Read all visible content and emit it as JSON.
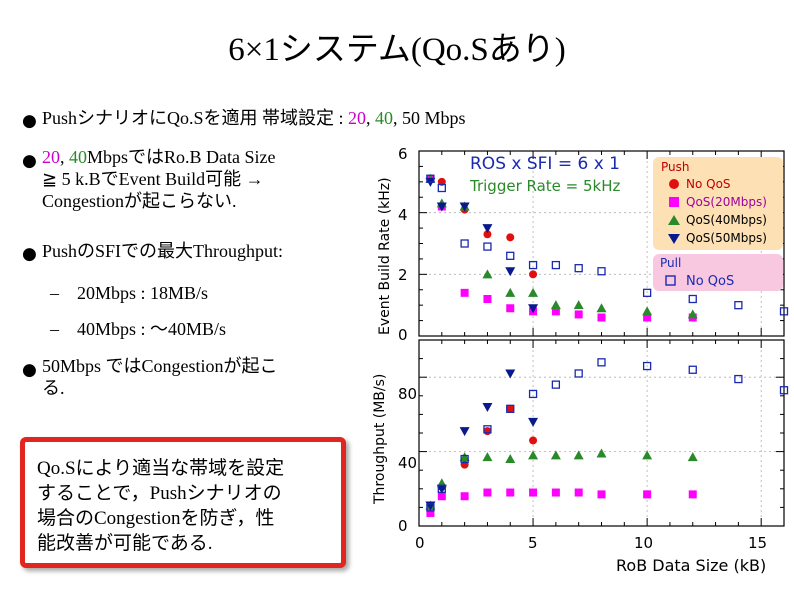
{
  "title": "6×1システム(Qo.Sあり)",
  "bullets": [
    {
      "pre": "Pushシナリオに",
      "mid": "Qo.Sを適用 帯域設定 : ",
      "v1": "20",
      "c1": ", ",
      "v2": "40",
      "c2": ", 50 Mbps"
    },
    {
      "v1": "20",
      "c1": ", ",
      "v2": "40",
      "line1": "Mbpsでは",
      "line1b": "Ro.B Data Size",
      "line2": "≧ 5 k.Bで",
      "line2b": "Event Build可能 →",
      "line3": "Congestionが起こらない."
    },
    {
      "line1": "Pushの",
      "line1b": "SFIでの最大",
      "line1c": "Throughput:"
    },
    {
      "line1": "50Mbps では",
      "line1b": "Congestionが起こ",
      "line2": "る."
    }
  ],
  "sub_items": [
    "20Mbps : 18MB/s",
    "40Mbps : ～40MB/s"
  ],
  "dash": "–",
  "callout": {
    "lines": [
      "Qo.Sにより適当な帯域を設定",
      "することで，Pushシナリオの",
      "場合のCongestionを防ぎ，性",
      "能改善が可能である."
    ]
  },
  "colors": {
    "magenta": "#ff00ff",
    "green": "#2a8a2a",
    "navy": "#0a1a8c",
    "red": "#e01010",
    "blue": "#1a2ab0",
    "callout_border": "#e0261e"
  },
  "chart_data": [
    {
      "type": "scatter",
      "title": "ROS x SFI = 6 x 1",
      "subtitle": "Trigger Rate = 5kHz",
      "ylabel": "Event Build Rate (kHz)",
      "xlim": [
        0,
        16
      ],
      "ylim": [
        0,
        6
      ],
      "yticks": [
        "0",
        "2",
        "4",
        "6"
      ],
      "grid": true,
      "legend": {
        "placement": "top-right",
        "push_title": "Push",
        "pull_title": "Pull",
        "items": [
          "No QoS",
          "QoS(20Mbps)",
          "QoS(40Mbps)",
          "QoS(50Mbps)",
          "No QoS"
        ]
      },
      "series": [
        {
          "name": "No QoS (Push)",
          "marker": "circle",
          "x": [
            0.5,
            1,
            2,
            3,
            4,
            5
          ],
          "y": [
            5.1,
            5.0,
            4.1,
            3.3,
            3.2,
            2.0
          ]
        },
        {
          "name": "QoS(20Mbps)",
          "marker": "square",
          "x": [
            0.5,
            1,
            2,
            3,
            4,
            5,
            6,
            7,
            8,
            10,
            12
          ],
          "y": [
            5.1,
            4.2,
            1.4,
            1.2,
            0.9,
            0.8,
            0.8,
            0.7,
            0.6,
            0.6,
            0.6
          ]
        },
        {
          "name": "QoS(40Mbps)",
          "marker": "triangle",
          "x": [
            0.5,
            1,
            2,
            3,
            4,
            5,
            6,
            7,
            8,
            10,
            12
          ],
          "y": [
            5.1,
            4.3,
            4.2,
            2.0,
            1.4,
            1.4,
            1.0,
            1.0,
            0.9,
            0.8,
            0.7
          ]
        },
        {
          "name": "QoS(50Mbps)",
          "marker": "triangle-down",
          "x": [
            0.5,
            1,
            2,
            3,
            4,
            5
          ],
          "y": [
            5.0,
            4.2,
            4.2,
            3.5,
            2.1,
            0.9
          ]
        },
        {
          "name": "No QoS (Pull)",
          "marker": "open-square",
          "x": [
            0.5,
            1,
            2,
            3,
            4,
            5,
            6,
            7,
            8,
            10,
            12,
            14,
            16
          ],
          "y": [
            5.1,
            4.8,
            3.0,
            2.9,
            2.6,
            2.3,
            2.3,
            2.2,
            2.1,
            1.4,
            1.2,
            1.0,
            0.8
          ]
        }
      ]
    },
    {
      "type": "scatter",
      "ylabel": "Throughput (MB/s)",
      "xlabel": "RoB Data Size (kB)",
      "xlim": [
        0,
        16
      ],
      "ylim": [
        0,
        100
      ],
      "xticks": [
        "0",
        "5",
        "10",
        "15"
      ],
      "yticks": [
        "0",
        "40",
        "80"
      ],
      "grid": true,
      "series": [
        {
          "name": "No QoS (Push)",
          "marker": "circle",
          "x": [
            0.5,
            1,
            2,
            3,
            4,
            5
          ],
          "y": [
            11,
            21,
            33,
            51,
            63,
            46
          ]
        },
        {
          "name": "QoS(20Mbps)",
          "marker": "square",
          "x": [
            0.5,
            1,
            2,
            3,
            4,
            5,
            6,
            7,
            8,
            10,
            12
          ],
          "y": [
            7,
            16,
            16,
            18,
            18,
            18,
            18,
            18,
            17,
            17,
            17
          ]
        },
        {
          "name": "QoS(40Mbps)",
          "marker": "triangle",
          "x": [
            0.5,
            1,
            2,
            3,
            4,
            5,
            6,
            7,
            8,
            10,
            12
          ],
          "y": [
            11,
            23,
            37,
            37,
            36,
            38,
            38,
            38,
            39,
            38,
            37
          ]
        },
        {
          "name": "QoS(50Mbps)",
          "marker": "triangle-down",
          "x": [
            0.5,
            1,
            2,
            3,
            4,
            5
          ],
          "y": [
            11,
            20,
            51,
            64,
            82,
            56
          ]
        },
        {
          "name": "No QoS (Pull)",
          "marker": "open-square",
          "x": [
            0.5,
            1,
            2,
            3,
            4,
            5,
            6,
            7,
            8,
            10,
            12,
            14,
            16
          ],
          "y": [
            10,
            20,
            36,
            52,
            63,
            71,
            76,
            82,
            88,
            86,
            84,
            79,
            73
          ]
        }
      ]
    }
  ]
}
